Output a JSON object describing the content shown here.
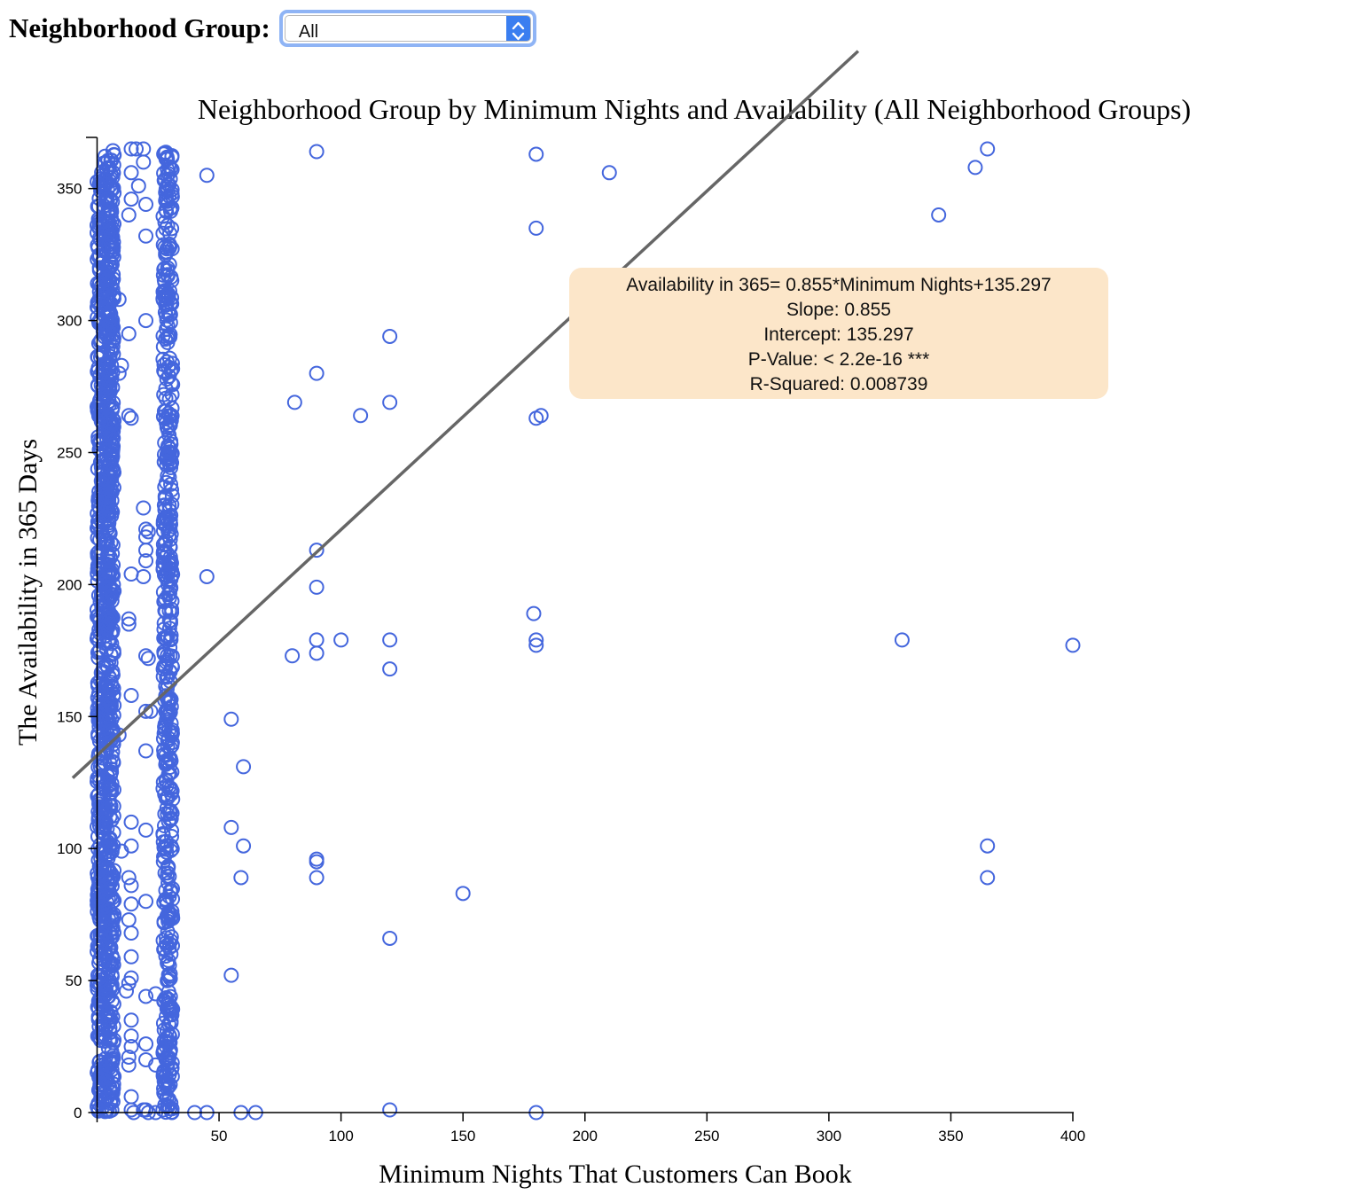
{
  "filter": {
    "label": "Neighborhood Group:",
    "selected": "All"
  },
  "chart_data": {
    "type": "scatter",
    "title": "Neighborhood Group by Minimum Nights and Availability (All Neighborhood Groups)",
    "xlabel": "Minimum Nights That Customers Can Book",
    "ylabel": "The Availability in 365 Days",
    "xlim": [
      0,
      400
    ],
    "ylim": [
      0,
      365
    ],
    "x_ticks": [
      50,
      100,
      150,
      200,
      250,
      300,
      350,
      400
    ],
    "y_ticks": [
      0,
      50,
      100,
      150,
      200,
      250,
      300,
      350
    ],
    "point_color": "#4466dd",
    "regression": {
      "slope": 0.855,
      "intercept": 135.297,
      "line_color": "#666666",
      "x_range": [
        -10,
        312
      ]
    },
    "annotation": {
      "lines": [
        "Availability in 365= 0.855*Minimum Nights+135.297",
        "Slope: 0.855",
        "Intercept: 135.297",
        "P-Value: < 2.2e-16 ***",
        "R-Squared: 0.008739"
      ],
      "background": "#fce6c9"
    },
    "dense_columns": [
      {
        "x": [
          0,
          7
        ],
        "y_range": [
          0,
          365
        ],
        "density": "very-high"
      },
      {
        "x": [
          27,
          31
        ],
        "y_range": [
          0,
          365
        ],
        "density": "high"
      }
    ],
    "points": [
      [
        14,
        365
      ],
      [
        16,
        365
      ],
      [
        19,
        365
      ],
      [
        19,
        360
      ],
      [
        14,
        356
      ],
      [
        17,
        351
      ],
      [
        20,
        344
      ],
      [
        14,
        346
      ],
      [
        13,
        340
      ],
      [
        20,
        332
      ],
      [
        13,
        295
      ],
      [
        20,
        300
      ],
      [
        9,
        308
      ],
      [
        10,
        283
      ],
      [
        6,
        278
      ],
      [
        9,
        280
      ],
      [
        13,
        264
      ],
      [
        14,
        263
      ],
      [
        5,
        246
      ],
      [
        19,
        229
      ],
      [
        20,
        221
      ],
      [
        21,
        220
      ],
      [
        20,
        218
      ],
      [
        20,
        213
      ],
      [
        20,
        209
      ],
      [
        19,
        203
      ],
      [
        14,
        204
      ],
      [
        5,
        204
      ],
      [
        13,
        187
      ],
      [
        13,
        185
      ],
      [
        20,
        173
      ],
      [
        21,
        172
      ],
      [
        14,
        158
      ],
      [
        20,
        152
      ],
      [
        22,
        152
      ],
      [
        20,
        137
      ],
      [
        9,
        143
      ],
      [
        14,
        110
      ],
      [
        20,
        107
      ],
      [
        14,
        101
      ],
      [
        10,
        99
      ],
      [
        13,
        89
      ],
      [
        14,
        86
      ],
      [
        20,
        80
      ],
      [
        14,
        79
      ],
      [
        13,
        73
      ],
      [
        14,
        68
      ],
      [
        14,
        59
      ],
      [
        14,
        51
      ],
      [
        13,
        49
      ],
      [
        12,
        46
      ],
      [
        24,
        45
      ],
      [
        20,
        44
      ],
      [
        14,
        35
      ],
      [
        14,
        29
      ],
      [
        20,
        26
      ],
      [
        14,
        25
      ],
      [
        13,
        21
      ],
      [
        20,
        20
      ],
      [
        24,
        18
      ],
      [
        13,
        18
      ],
      [
        14,
        6
      ],
      [
        14,
        1
      ],
      [
        15,
        0
      ],
      [
        19,
        1
      ],
      [
        20,
        1
      ],
      [
        21,
        0
      ],
      [
        24,
        0
      ],
      [
        27,
        1
      ],
      [
        45,
        355
      ],
      [
        45,
        203
      ],
      [
        40,
        0
      ],
      [
        45,
        0
      ],
      [
        55,
        149
      ],
      [
        60,
        131
      ],
      [
        55,
        108
      ],
      [
        60,
        101
      ],
      [
        59,
        89
      ],
      [
        55,
        52
      ],
      [
        59,
        0
      ],
      [
        65,
        0
      ],
      [
        90,
        364
      ],
      [
        90,
        280
      ],
      [
        81,
        269
      ],
      [
        90,
        213
      ],
      [
        90,
        199
      ],
      [
        80,
        173
      ],
      [
        90,
        179
      ],
      [
        90,
        174
      ],
      [
        100,
        179
      ],
      [
        108,
        264
      ],
      [
        90,
        96
      ],
      [
        90,
        95
      ],
      [
        90,
        89
      ],
      [
        120,
        294
      ],
      [
        120,
        269
      ],
      [
        120,
        179
      ],
      [
        120,
        168
      ],
      [
        120,
        66
      ],
      [
        120,
        1
      ],
      [
        150,
        83
      ],
      [
        180,
        363
      ],
      [
        180,
        335
      ],
      [
        180,
        263
      ],
      [
        182,
        264
      ],
      [
        179,
        189
      ],
      [
        180,
        179
      ],
      [
        180,
        177
      ],
      [
        180,
        0
      ],
      [
        210,
        356
      ],
      [
        330,
        179
      ],
      [
        345,
        340
      ],
      [
        360,
        358
      ],
      [
        365,
        365
      ],
      [
        365,
        101
      ],
      [
        365,
        89
      ],
      [
        400,
        177
      ]
    ]
  }
}
